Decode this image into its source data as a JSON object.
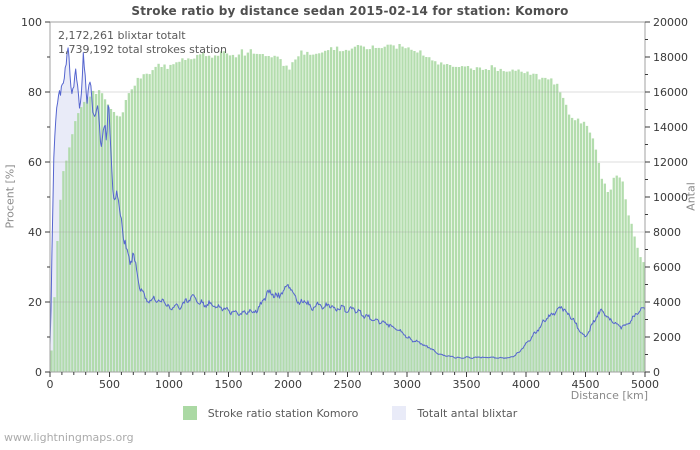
{
  "footer": "www.lightningmaps.org",
  "chart_data": {
    "type": "area",
    "title": "Stroke ratio by distance sedan 2015-02-14 for station: Komoro",
    "annotations": [
      "2,172,261 blixtar totalt",
      "1,739,192 total strokes station"
    ],
    "legend_position": "bottom-center",
    "grid": {
      "horizontal_lines_pct": [
        20,
        40,
        60,
        80
      ],
      "vertical_lines": false
    },
    "colors": {
      "plot_border": "#a2a2a2",
      "tick": "#3a3a3a",
      "tick_label": "#3a3a3a",
      "gridline": "#9a9a9a"
    },
    "axes": {
      "x": {
        "label": "Distance  [km]",
        "min": 0,
        "max": 5000,
        "major_tick": 500,
        "minor_tick": 100
      },
      "left": {
        "label": "Procent  [%]",
        "min": 0,
        "max": 100,
        "major_tick": 20,
        "minor_tick": 10
      },
      "right": {
        "label": "Antal",
        "min": 0,
        "max": 20000,
        "major_tick": 2000,
        "minor_tick": 1000
      }
    },
    "series": [
      {
        "name": "Stroke ratio station Komoro",
        "style": "bars",
        "axis": "left",
        "unit": "%",
        "color": "#abd9a4",
        "points": [
          [
            0,
            0
          ],
          [
            25,
            12
          ],
          [
            50,
            30
          ],
          [
            75,
            45
          ],
          [
            100,
            55
          ],
          [
            150,
            63
          ],
          [
            200,
            70
          ],
          [
            250,
            75
          ],
          [
            300,
            78
          ],
          [
            350,
            80
          ],
          [
            400,
            80
          ],
          [
            450,
            79
          ],
          [
            500,
            76
          ],
          [
            550,
            73
          ],
          [
            600,
            74
          ],
          [
            650,
            78
          ],
          [
            700,
            82
          ],
          [
            750,
            84.5
          ],
          [
            800,
            85
          ],
          [
            850,
            86
          ],
          [
            900,
            87.5
          ],
          [
            950,
            88
          ],
          [
            1000,
            87
          ],
          [
            1050,
            88
          ],
          [
            1100,
            89
          ],
          [
            1150,
            89
          ],
          [
            1200,
            90
          ],
          [
            1250,
            91.5
          ],
          [
            1300,
            91
          ],
          [
            1350,
            90
          ],
          [
            1400,
            90.5
          ],
          [
            1450,
            91
          ],
          [
            1500,
            91
          ],
          [
            1550,
            90.5
          ],
          [
            1600,
            91.5
          ],
          [
            1650,
            91
          ],
          [
            1700,
            91.5
          ],
          [
            1750,
            90.5
          ],
          [
            1800,
            91
          ],
          [
            1850,
            90.5
          ],
          [
            1900,
            90.5
          ],
          [
            1950,
            88.5
          ],
          [
            2000,
            86.5
          ],
          [
            2050,
            89
          ],
          [
            2100,
            91
          ],
          [
            2150,
            91.5
          ],
          [
            2200,
            91
          ],
          [
            2250,
            91.5
          ],
          [
            2300,
            92
          ],
          [
            2350,
            92
          ],
          [
            2400,
            92.5
          ],
          [
            2450,
            92
          ],
          [
            2500,
            92.5
          ],
          [
            2550,
            93
          ],
          [
            2600,
            92.5
          ],
          [
            2650,
            93
          ],
          [
            2700,
            93
          ],
          [
            2750,
            93.5
          ],
          [
            2800,
            93
          ],
          [
            2850,
            93.5
          ],
          [
            2900,
            93
          ],
          [
            2950,
            93
          ],
          [
            3000,
            92.5
          ],
          [
            3050,
            92.5
          ],
          [
            3100,
            92
          ],
          [
            3150,
            90
          ],
          [
            3200,
            89
          ],
          [
            3250,
            88.5
          ],
          [
            3300,
            88
          ],
          [
            3350,
            87.5
          ],
          [
            3400,
            87
          ],
          [
            3450,
            86.5
          ],
          [
            3500,
            87
          ],
          [
            3550,
            86.5
          ],
          [
            3600,
            87
          ],
          [
            3650,
            87
          ],
          [
            3700,
            87
          ],
          [
            3750,
            86.5
          ],
          [
            3800,
            86
          ],
          [
            3850,
            86.5
          ],
          [
            3900,
            86
          ],
          [
            3950,
            85.5
          ],
          [
            4000,
            85.5
          ],
          [
            4050,
            85
          ],
          [
            4100,
            84.5
          ],
          [
            4150,
            84
          ],
          [
            4200,
            83.5
          ],
          [
            4250,
            82.5
          ],
          [
            4300,
            80
          ],
          [
            4350,
            74
          ],
          [
            4400,
            73
          ],
          [
            4450,
            72
          ],
          [
            4500,
            71
          ],
          [
            4550,
            68
          ],
          [
            4600,
            62
          ],
          [
            4650,
            54
          ],
          [
            4700,
            51
          ],
          [
            4750,
            56
          ],
          [
            4800,
            56
          ],
          [
            4850,
            47
          ],
          [
            4900,
            40
          ],
          [
            4950,
            34
          ],
          [
            5000,
            30
          ]
        ]
      },
      {
        "name": "Totalt antal blixtar",
        "style": "area-line",
        "axis": "right",
        "unit": "strokes",
        "fill": "#e9ebf8",
        "line_color": "#5565cf",
        "points": [
          [
            0,
            1600
          ],
          [
            10,
            4000
          ],
          [
            20,
            8000
          ],
          [
            30,
            12000
          ],
          [
            50,
            15000
          ],
          [
            70,
            16000
          ],
          [
            90,
            15600
          ],
          [
            110,
            16800
          ],
          [
            130,
            17400
          ],
          [
            150,
            18800
          ],
          [
            165,
            17000
          ],
          [
            180,
            16300
          ],
          [
            200,
            16400
          ],
          [
            215,
            17000
          ],
          [
            230,
            16200
          ],
          [
            250,
            15000
          ],
          [
            265,
            16000
          ],
          [
            280,
            18300
          ],
          [
            295,
            16600
          ],
          [
            310,
            15200
          ],
          [
            325,
            16400
          ],
          [
            340,
            17000
          ],
          [
            355,
            15000
          ],
          [
            370,
            14200
          ],
          [
            385,
            15000
          ],
          [
            400,
            15600
          ],
          [
            415,
            14000
          ],
          [
            430,
            12800
          ],
          [
            445,
            13600
          ],
          [
            460,
            14400
          ],
          [
            475,
            13000
          ],
          [
            490,
            15600
          ],
          [
            505,
            13400
          ],
          [
            520,
            11400
          ],
          [
            535,
            10200
          ],
          [
            550,
            9800
          ],
          [
            565,
            10200
          ],
          [
            580,
            9400
          ],
          [
            600,
            8800
          ],
          [
            620,
            7600
          ],
          [
            640,
            7000
          ],
          [
            660,
            6600
          ],
          [
            680,
            6300
          ],
          [
            700,
            6700
          ],
          [
            720,
            6000
          ],
          [
            740,
            5200
          ],
          [
            760,
            4800
          ],
          [
            780,
            4600
          ],
          [
            800,
            4300
          ],
          [
            825,
            4100
          ],
          [
            850,
            4000
          ],
          [
            875,
            4300
          ],
          [
            900,
            4100
          ],
          [
            925,
            3900
          ],
          [
            950,
            4200
          ],
          [
            975,
            3800
          ],
          [
            1000,
            3600
          ],
          [
            1050,
            3800
          ],
          [
            1100,
            3700
          ],
          [
            1150,
            4100
          ],
          [
            1200,
            4400
          ],
          [
            1250,
            4000
          ],
          [
            1300,
            3800
          ],
          [
            1350,
            3900
          ],
          [
            1400,
            3700
          ],
          [
            1450,
            3600
          ],
          [
            1500,
            3500
          ],
          [
            1550,
            3400
          ],
          [
            1600,
            3300
          ],
          [
            1650,
            3500
          ],
          [
            1700,
            3400
          ],
          [
            1750,
            3600
          ],
          [
            1800,
            4200
          ],
          [
            1850,
            4600
          ],
          [
            1900,
            4300
          ],
          [
            1950,
            4500
          ],
          [
            2000,
            5000
          ],
          [
            2050,
            4400
          ],
          [
            2100,
            3900
          ],
          [
            2150,
            4100
          ],
          [
            2200,
            3600
          ],
          [
            2250,
            3900
          ],
          [
            2300,
            3700
          ],
          [
            2350,
            3850
          ],
          [
            2400,
            3500
          ],
          [
            2450,
            3700
          ],
          [
            2500,
            3480
          ],
          [
            2550,
            3600
          ],
          [
            2600,
            3420
          ],
          [
            2650,
            3200
          ],
          [
            2700,
            3100
          ],
          [
            2750,
            2900
          ],
          [
            2800,
            2850
          ],
          [
            2850,
            2700
          ],
          [
            2900,
            2500
          ],
          [
            2950,
            2300
          ],
          [
            3000,
            2000
          ],
          [
            3050,
            1800
          ],
          [
            3100,
            1700
          ],
          [
            3150,
            1500
          ],
          [
            3200,
            1350
          ],
          [
            3250,
            1100
          ],
          [
            3300,
            950
          ],
          [
            3350,
            900
          ],
          [
            3400,
            850
          ],
          [
            3450,
            800
          ],
          [
            3500,
            850
          ],
          [
            3550,
            800
          ],
          [
            3600,
            850
          ],
          [
            3650,
            820
          ],
          [
            3700,
            850
          ],
          [
            3750,
            800
          ],
          [
            3800,
            830
          ],
          [
            3850,
            800
          ],
          [
            3900,
            900
          ],
          [
            3950,
            1200
          ],
          [
            4000,
            1600
          ],
          [
            4050,
            2000
          ],
          [
            4100,
            2400
          ],
          [
            4150,
            2900
          ],
          [
            4200,
            3200
          ],
          [
            4250,
            3500
          ],
          [
            4300,
            3700
          ],
          [
            4350,
            3300
          ],
          [
            4400,
            3000
          ],
          [
            4450,
            2300
          ],
          [
            4500,
            1950
          ],
          [
            4550,
            2600
          ],
          [
            4600,
            3300
          ],
          [
            4650,
            3500
          ],
          [
            4700,
            3000
          ],
          [
            4750,
            2800
          ],
          [
            4800,
            2600
          ],
          [
            4850,
            2700
          ],
          [
            4900,
            3100
          ],
          [
            4950,
            3500
          ],
          [
            5000,
            3700
          ]
        ]
      }
    ]
  }
}
